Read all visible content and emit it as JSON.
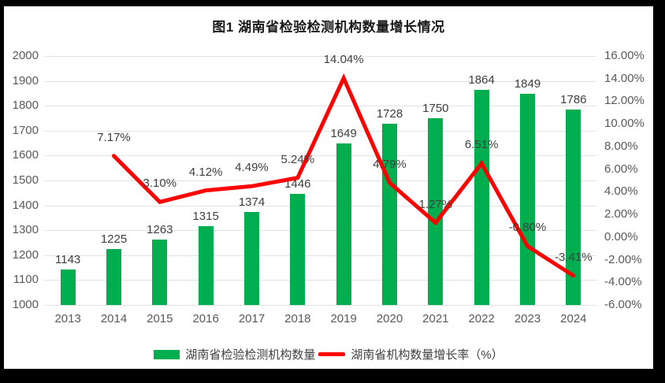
{
  "frame": {
    "border_color": "#000000",
    "background": "#ffffff"
  },
  "chart_data": {
    "type": "bar",
    "title": "图1 湖南省检验检测机构数量增长情况",
    "categories": [
      "2013",
      "2014",
      "2015",
      "2016",
      "2017",
      "2018",
      "2019",
      "2020",
      "2021",
      "2022",
      "2023",
      "2024"
    ],
    "series": [
      {
        "name": "湖南省检验检测机构数量",
        "type": "bar",
        "axis": "left",
        "color": "#00AE50",
        "values": [
          1143,
          1225,
          1263,
          1315,
          1374,
          1446,
          1649,
          1728,
          1750,
          1864,
          1849,
          1786
        ],
        "point_labels": [
          "1143",
          "1225",
          "1263",
          "1315",
          "1374",
          "1446",
          "1649",
          "1728",
          "1750",
          "1864",
          "1849",
          "1786"
        ]
      },
      {
        "name": "湖南省机构数量增长率（%）",
        "type": "line",
        "axis": "right",
        "color": "#FF0000",
        "values": [
          null,
          7.17,
          3.1,
          4.12,
          4.49,
          5.24,
          14.04,
          4.79,
          1.27,
          6.51,
          -0.8,
          -3.41
        ],
        "point_labels": [
          "",
          "7.17%",
          "3.10%",
          "4.12%",
          "4.49%",
          "5.24%",
          "14.04%",
          "4.79%",
          "1.27%",
          "6.51%",
          "-0.80%",
          "-3.41%"
        ]
      }
    ],
    "left_axis": {
      "min": 1000,
      "max": 2000,
      "step": 100,
      "tick_labels": [
        "2000",
        "1900",
        "1800",
        "1700",
        "1600",
        "1500",
        "1400",
        "1300",
        "1200",
        "1100",
        "1000"
      ]
    },
    "right_axis": {
      "min": -6,
      "max": 16,
      "step": 2,
      "tick_labels": [
        "16.00%",
        "14.00%",
        "12.00%",
        "10.00%",
        "8.00%",
        "6.00%",
        "4.00%",
        "2.00%",
        "0.00%",
        "-2.00%",
        "-4.00%",
        "-6.00%"
      ]
    },
    "grid": true,
    "legend_position": "bottom",
    "colors": {
      "grid": "#e2e2e2",
      "axis_text": "#595959",
      "data_label_text": "#3f3f3f",
      "title_text": "#1a1a1a"
    }
  }
}
